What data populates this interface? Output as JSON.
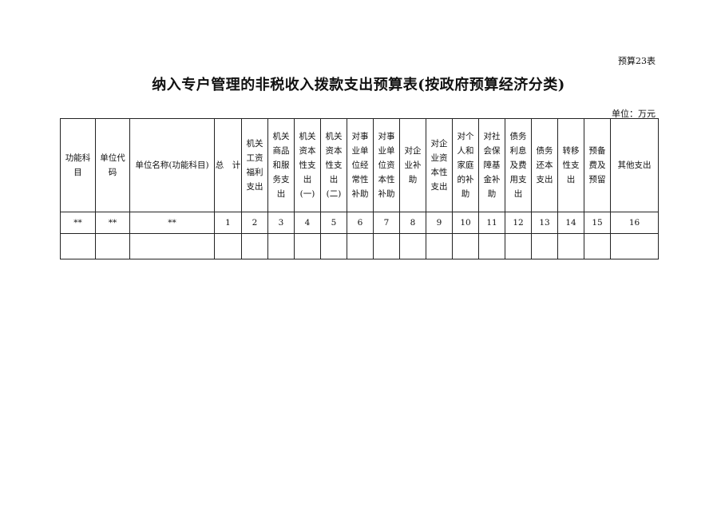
{
  "table_no": "预算23表",
  "title": "纳入专户管理的非税收入拨款支出预算表(按政府预算经济分类)",
  "unit": "单位：万元",
  "headers": [
    "功能科\n目",
    "单位代\n码",
    "单位名称(功能科目)",
    "总　计",
    "机关\n工资\n福利\n支出",
    "机关\n商品\n和服\n务支\n出",
    "机关\n资本\n性支\n出\n(一)",
    "机关\n资本\n性支\n出\n(二)",
    "对事\n业单\n位经\n常性\n补助",
    "对事\n业单\n位资\n本性\n补助",
    "对企\n业补\n助",
    "对企\n业资\n本性\n支出",
    "对个\n人和\n家庭\n的补\n助",
    "对社\n会保\n障基\n金补\n助",
    "债务\n利息\n及费\n用支\n出",
    "债务\n还本\n支出",
    "转移\n性支\n出",
    "预备\n费及\n预留",
    "其他支出"
  ],
  "numbers": [
    "**",
    "**",
    "**",
    "1",
    "2",
    "3",
    "4",
    "5",
    "6",
    "7",
    "8",
    "9",
    "10",
    "11",
    "12",
    "13",
    "14",
    "15",
    "16"
  ]
}
